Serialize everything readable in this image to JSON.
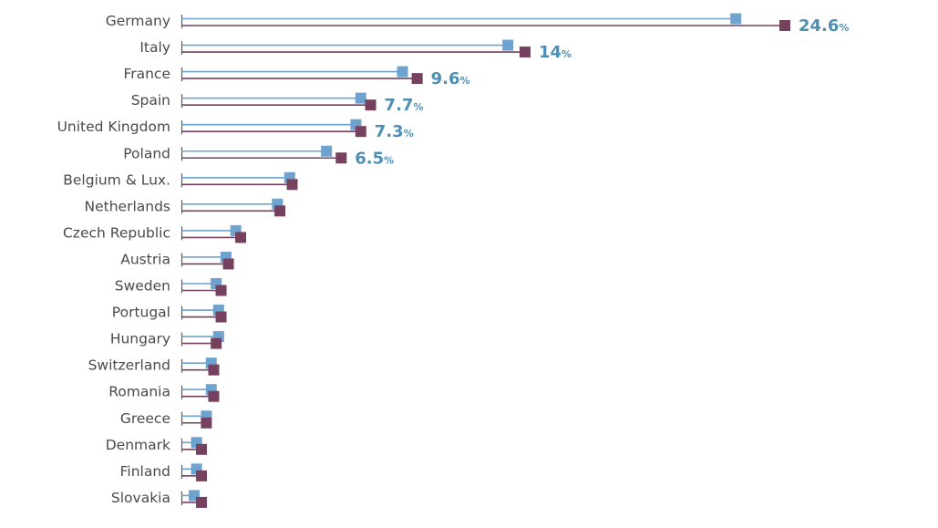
{
  "chart_data": {
    "type": "bar",
    "orientation": "horizontal",
    "categories": [
      "Germany",
      "Italy",
      "France",
      "Spain",
      "United Kingdom",
      "Poland",
      "Belgium & Lux.",
      "Netherlands",
      "Czech Republic",
      "Austria",
      "Sweden",
      "Portugal",
      "Hungary",
      "Switzerland",
      "Romania",
      "Greece",
      "Denmark",
      "Finland",
      "Slovakia"
    ],
    "series": [
      {
        "color": "#6fa3cf",
        "values": [
          22.6,
          13.3,
          9.0,
          7.3,
          7.1,
          5.9,
          4.4,
          3.9,
          2.2,
          1.8,
          1.4,
          1.5,
          1.5,
          1.2,
          1.2,
          1.0,
          0.6,
          0.6,
          0.5
        ]
      },
      {
        "color": "#76405f",
        "values": [
          24.6,
          14.0,
          9.6,
          7.7,
          7.3,
          6.5,
          4.5,
          4.0,
          2.4,
          1.9,
          1.6,
          1.6,
          1.4,
          1.3,
          1.3,
          1.0,
          0.8,
          0.8,
          0.8
        ]
      }
    ],
    "data_labels": [
      {
        "index": 0,
        "value": "24.6",
        "unit": "%"
      },
      {
        "index": 1,
        "value": "14",
        "unit": "%"
      },
      {
        "index": 2,
        "value": "9.6",
        "unit": "%"
      },
      {
        "index": 3,
        "value": "7.7",
        "unit": "%"
      },
      {
        "index": 4,
        "value": "7.3",
        "unit": "%"
      },
      {
        "index": 5,
        "value": "6.5",
        "unit": "%"
      }
    ],
    "label_color": "#4f8fb5",
    "xlim": [
      0,
      24.6
    ],
    "grid": false,
    "legend": "none",
    "title": "",
    "xlabel": "",
    "ylabel": ""
  }
}
